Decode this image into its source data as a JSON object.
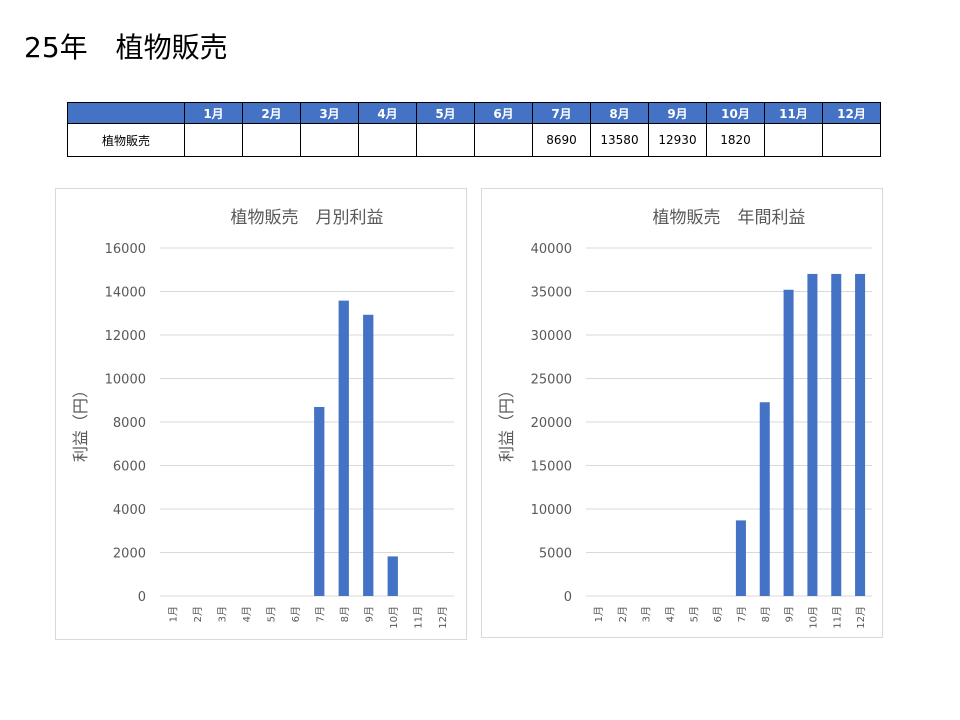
{
  "page": {
    "title": "25年　植物販売"
  },
  "table": {
    "months": [
      "1月",
      "2月",
      "3月",
      "4月",
      "5月",
      "6月",
      "7月",
      "8月",
      "9月",
      "10月",
      "11月",
      "12月"
    ],
    "row_label": "植物販売",
    "values": [
      "",
      "",
      "",
      "",
      "",
      "",
      "8690",
      "13580",
      "12930",
      "1820",
      "",
      ""
    ],
    "header_color": "#4472C4"
  },
  "chart_data": [
    {
      "type": "bar",
      "title": "植物販売　月別利益",
      "ylabel": "利益（円）",
      "xlabel": "",
      "categories": [
        "1月",
        "2月",
        "3月",
        "4月",
        "5月",
        "6月",
        "7月",
        "8月",
        "9月",
        "10月",
        "11月",
        "12月"
      ],
      "values": [
        0,
        0,
        0,
        0,
        0,
        0,
        8690,
        13580,
        12930,
        1820,
        0,
        0
      ],
      "ylim": [
        0,
        16000
      ],
      "yticks": [
        0,
        2000,
        4000,
        6000,
        8000,
        10000,
        12000,
        14000,
        16000
      ],
      "grid": true,
      "color": "#4472C4"
    },
    {
      "type": "bar",
      "title": "植物販売　年間利益",
      "ylabel": "利益（円）",
      "xlabel": "",
      "categories": [
        "1月",
        "2月",
        "3月",
        "4月",
        "5月",
        "6月",
        "7月",
        "8月",
        "9月",
        "10月",
        "11月",
        "12月"
      ],
      "values": [
        0,
        0,
        0,
        0,
        0,
        0,
        8690,
        22270,
        35200,
        37020,
        37020,
        37020
      ],
      "ylim": [
        0,
        40000
      ],
      "yticks": [
        0,
        5000,
        10000,
        15000,
        20000,
        25000,
        30000,
        35000,
        40000
      ],
      "grid": true,
      "color": "#4472C4"
    }
  ]
}
